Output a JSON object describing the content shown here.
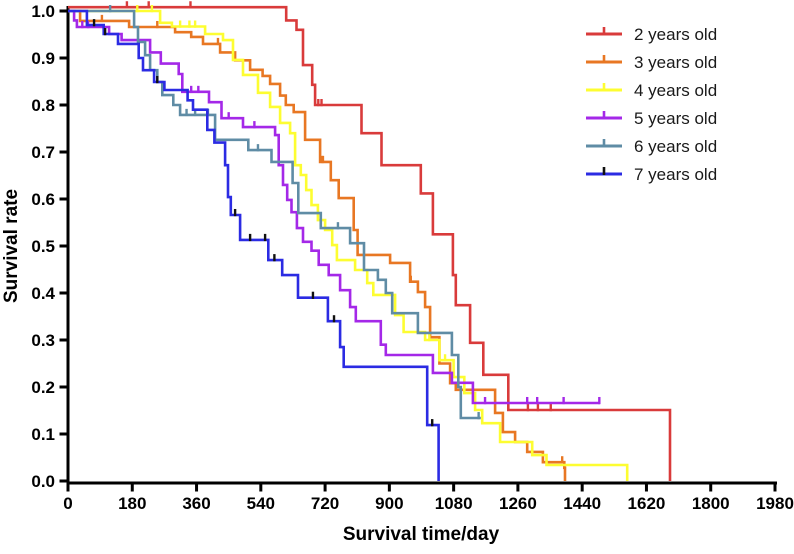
{
  "figure": {
    "background": "#ffffff",
    "axis_color": "#000000"
  },
  "chart_data": {
    "type": "line",
    "subtype": "kaplan-meier-step-survival",
    "title": "",
    "xlabel": "Survival time/day",
    "ylabel": "Survival rate",
    "xlim": [
      0,
      1980
    ],
    "ylim": [
      0.0,
      1.0
    ],
    "grid": false,
    "legend_position": "upper-right",
    "x_ticks": [
      0,
      180,
      360,
      540,
      720,
      900,
      1080,
      1260,
      1440,
      1620,
      1800,
      1980
    ],
    "x_tick_labels": [
      "0",
      "180",
      "360",
      "540",
      "720",
      "900",
      "1080",
      "1260",
      "1440",
      "1620",
      "1800",
      "1980"
    ],
    "y_ticks": [
      0.0,
      0.1,
      0.2,
      0.3,
      0.4,
      0.5,
      0.6,
      0.7,
      0.8,
      0.9,
      1.0
    ],
    "y_tick_labels": [
      "0.0",
      "0.1",
      "0.2",
      "0.3",
      "0.4",
      "0.5",
      "0.6",
      "0.7",
      "0.8",
      "0.9",
      "1.0"
    ],
    "series": [
      {
        "label": "2 years old",
        "color": "#D93B3B",
        "censor_color": "#D93B3B",
        "points": [
          [
            0,
            1.008
          ],
          [
            611,
            0.98
          ],
          [
            640,
            0.96
          ],
          [
            658,
            0.885
          ],
          [
            684,
            0.843
          ],
          [
            692,
            0.8
          ],
          [
            822,
            0.74
          ],
          [
            878,
            0.672
          ],
          [
            988,
            0.612
          ],
          [
            1022,
            0.525
          ],
          [
            1078,
            0.438
          ],
          [
            1086,
            0.374
          ],
          [
            1126,
            0.294
          ],
          [
            1163,
            0.226
          ],
          [
            1233,
            0.151
          ],
          [
            1686,
            0.151
          ],
          [
            1686,
            0
          ]
        ],
        "censor_days": [
          165,
          226,
          343,
          701,
          710,
          1288,
          1316,
          1352
        ]
      },
      {
        "label": "3 years old",
        "color": "#E87723",
        "censor_color": "#E87723",
        "points": [
          [
            0,
            1.0
          ],
          [
            34,
            0.979
          ],
          [
            171,
            0.966
          ],
          [
            300,
            0.955
          ],
          [
            345,
            0.945
          ],
          [
            378,
            0.93
          ],
          [
            426,
            0.912
          ],
          [
            468,
            0.895
          ],
          [
            510,
            0.875
          ],
          [
            545,
            0.862
          ],
          [
            566,
            0.845
          ],
          [
            594,
            0.82
          ],
          [
            610,
            0.8
          ],
          [
            632,
            0.785
          ],
          [
            664,
            0.726
          ],
          [
            706,
            0.679
          ],
          [
            736,
            0.64
          ],
          [
            758,
            0.602
          ],
          [
            800,
            0.534
          ],
          [
            811,
            0.481
          ],
          [
            902,
            0.464
          ],
          [
            958,
            0.424
          ],
          [
            980,
            0.402
          ],
          [
            1000,
            0.37
          ],
          [
            1014,
            0.306
          ],
          [
            1040,
            0.25
          ],
          [
            1070,
            0.208
          ],
          [
            1086,
            0.194
          ],
          [
            1196,
            0.145
          ],
          [
            1218,
            0.104
          ],
          [
            1252,
            0.083
          ],
          [
            1286,
            0.062
          ],
          [
            1330,
            0.04
          ],
          [
            1390,
            0.028
          ],
          [
            1392,
            0
          ]
        ],
        "censor_days": [
          95,
          250,
          420,
          712,
          714,
          960,
          1384
        ]
      },
      {
        "label": "4 years old",
        "color": "#FDFD31",
        "censor_color": "#FDFD31",
        "points": [
          [
            0,
            1.0
          ],
          [
            258,
            0.975
          ],
          [
            291,
            0.967
          ],
          [
            384,
            0.951
          ],
          [
            434,
            0.938
          ],
          [
            462,
            0.896
          ],
          [
            490,
            0.864
          ],
          [
            532,
            0.826
          ],
          [
            566,
            0.796
          ],
          [
            594,
            0.762
          ],
          [
            622,
            0.74
          ],
          [
            636,
            0.672
          ],
          [
            652,
            0.651
          ],
          [
            667,
            0.619
          ],
          [
            682,
            0.587
          ],
          [
            700,
            0.555
          ],
          [
            720,
            0.534
          ],
          [
            740,
            0.502
          ],
          [
            753,
            0.47
          ],
          [
            804,
            0.449
          ],
          [
            838,
            0.421
          ],
          [
            855,
            0.396
          ],
          [
            916,
            0.353
          ],
          [
            940,
            0.317
          ],
          [
            1000,
            0.3
          ],
          [
            1040,
            0.257
          ],
          [
            1080,
            0.221
          ],
          [
            1110,
            0.187
          ],
          [
            1140,
            0.151
          ],
          [
            1160,
            0.123
          ],
          [
            1210,
            0.083
          ],
          [
            1300,
            0.055
          ],
          [
            1340,
            0.034
          ],
          [
            1566,
            0.028
          ],
          [
            1566,
            0
          ]
        ],
        "censor_days": [
          194,
          235,
          314,
          340,
          356,
          1012,
          1056
        ]
      },
      {
        "label": "5 years old",
        "color": "#A428E8",
        "censor_color": "#A428E8",
        "points": [
          [
            0,
            1.0
          ],
          [
            17,
            0.98
          ],
          [
            25,
            0.966
          ],
          [
            115,
            0.951
          ],
          [
            150,
            0.938
          ],
          [
            230,
            0.912
          ],
          [
            260,
            0.888
          ],
          [
            310,
            0.866
          ],
          [
            320,
            0.828
          ],
          [
            395,
            0.806
          ],
          [
            430,
            0.772
          ],
          [
            490,
            0.753
          ],
          [
            580,
            0.736
          ],
          [
            590,
            0.672
          ],
          [
            602,
            0.63
          ],
          [
            614,
            0.598
          ],
          [
            626,
            0.572
          ],
          [
            641,
            0.538
          ],
          [
            658,
            0.509
          ],
          [
            682,
            0.49
          ],
          [
            702,
            0.46
          ],
          [
            730,
            0.438
          ],
          [
            762,
            0.406
          ],
          [
            790,
            0.37
          ],
          [
            806,
            0.34
          ],
          [
            876,
            0.29
          ],
          [
            890,
            0.268
          ],
          [
            1022,
            0.23
          ],
          [
            1075,
            0.209
          ],
          [
            1134,
            0.166
          ],
          [
            1490,
            0.166
          ]
        ],
        "censor_days": [
          40,
          56,
          345,
          365,
          450,
          522,
          1168,
          1286,
          1314,
          1388,
          1488
        ]
      },
      {
        "label": "6 years old",
        "color": "#5F8CA5",
        "censor_color": "#5F8CA5",
        "points": [
          [
            0,
            1.0
          ],
          [
            185,
            0.966
          ],
          [
            196,
            0.934
          ],
          [
            216,
            0.906
          ],
          [
            230,
            0.874
          ],
          [
            250,
            0.849
          ],
          [
            264,
            0.821
          ],
          [
            295,
            0.8
          ],
          [
            314,
            0.779
          ],
          [
            412,
            0.726
          ],
          [
            505,
            0.704
          ],
          [
            570,
            0.679
          ],
          [
            629,
            0.634
          ],
          [
            645,
            0.57
          ],
          [
            708,
            0.538
          ],
          [
            790,
            0.506
          ],
          [
            829,
            0.449
          ],
          [
            868,
            0.428
          ],
          [
            890,
            0.4
          ],
          [
            908,
            0.357
          ],
          [
            980,
            0.315
          ],
          [
            1075,
            0.268
          ],
          [
            1093,
            0.2
          ],
          [
            1100,
            0.134
          ],
          [
            1156,
            0.134
          ]
        ],
        "censor_days": [
          118,
          332,
          356,
          392,
          532,
          756,
          1150
        ]
      },
      {
        "label": "7 years old",
        "color": "#2B2BE3",
        "censor_color": "#111111",
        "points": [
          [
            0,
            1.0
          ],
          [
            53,
            0.97
          ],
          [
            100,
            0.951
          ],
          [
            140,
            0.93
          ],
          [
            198,
            0.9
          ],
          [
            210,
            0.874
          ],
          [
            241,
            0.849
          ],
          [
            270,
            0.832
          ],
          [
            335,
            0.81
          ],
          [
            350,
            0.79
          ],
          [
            390,
            0.747
          ],
          [
            410,
            0.72
          ],
          [
            440,
            0.672
          ],
          [
            448,
            0.604
          ],
          [
            456,
            0.566
          ],
          [
            482,
            0.513
          ],
          [
            561,
            0.47
          ],
          [
            600,
            0.438
          ],
          [
            644,
            0.39
          ],
          [
            728,
            0.34
          ],
          [
            762,
            0.285
          ],
          [
            772,
            0.243
          ],
          [
            1006,
            0.243
          ],
          [
            1006,
            0.119
          ],
          [
            1038,
            0.119
          ],
          [
            1038,
            0
          ]
        ],
        "censor_days": [
          73,
          104,
          250,
          468,
          510,
          552,
          578,
          686,
          745,
          1020
        ]
      }
    ]
  }
}
